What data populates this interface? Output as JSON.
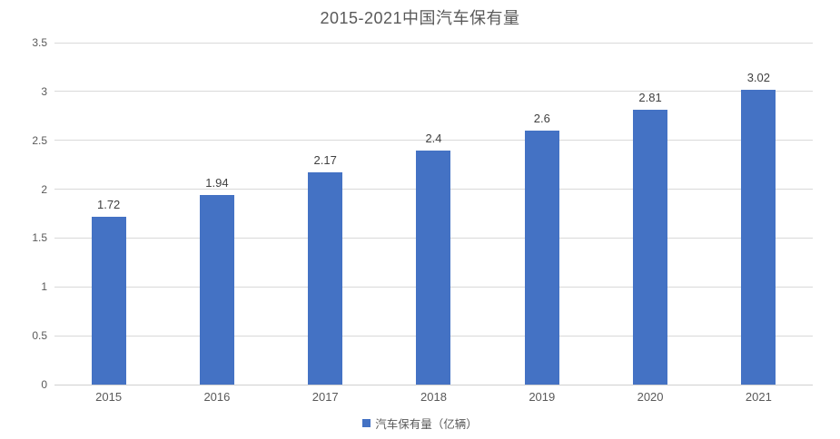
{
  "title": "2015-2021中国汽车保有量",
  "legend": {
    "label": "汽车保有量（亿辆）",
    "marker_color": "#4472c4"
  },
  "colors": {
    "bar": "#4472c4",
    "gridline": "#d9d9d9",
    "axis_text": "#595959",
    "value_label_text": "#404040",
    "background": "#ffffff"
  },
  "chart_data": {
    "type": "bar",
    "title": "2015-2021中国汽车保有量",
    "categories": [
      "2015",
      "2016",
      "2017",
      "2018",
      "2019",
      "2020",
      "2021"
    ],
    "series": [
      {
        "name": "汽车保有量（亿辆）",
        "values": [
          1.72,
          1.94,
          2.17,
          2.4,
          2.6,
          2.81,
          3.02
        ],
        "value_labels": [
          "1.72",
          "1.94",
          "2.17",
          "2.4",
          "2.6",
          "2.81",
          "3.02"
        ],
        "color": "#4472c4"
      }
    ],
    "xlabel": "",
    "ylabel": "",
    "ylim": [
      0,
      3.5
    ],
    "ytick_labels": [
      "0",
      "0.5",
      "1",
      "1.5",
      "2",
      "2.5",
      "3",
      "3.5"
    ],
    "grid": true,
    "legend_position": "bottom",
    "data_labels": true
  }
}
